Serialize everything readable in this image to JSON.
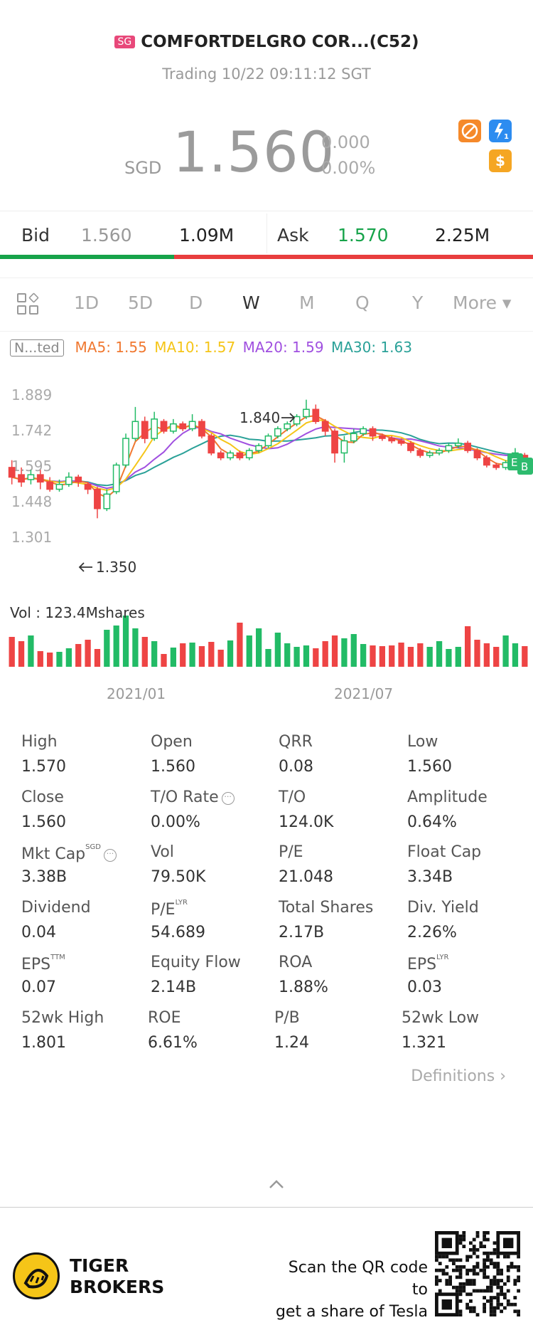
{
  "header": {
    "market_badge": "SG",
    "title": "COMFORTDELGRO COR...(C52)",
    "status": "Trading 10/22 09:11:12 SGT",
    "currency": "SGD",
    "price": "1.560",
    "change": "0.000",
    "change_pct": "0.00%"
  },
  "icons": {
    "no_fee_icon": "no-commission-icon",
    "margin_icon": "lightning-1-icon",
    "dollar_icon": "dollar-icon",
    "colors": {
      "orange": "#f5892a",
      "blue": "#2d8cf0",
      "gold": "#f5a623"
    }
  },
  "bid_ask": {
    "bid_label": "Bid",
    "bid_price": "1.560",
    "bid_size": "1.09M",
    "ask_label": "Ask",
    "ask_price": "1.570",
    "ask_size": "2.25M",
    "colors": {
      "green": "#16a34a",
      "red": "#e83e3e"
    }
  },
  "periods": {
    "items": [
      "1D",
      "5D",
      "D",
      "W",
      "M",
      "Q",
      "Y"
    ],
    "active": "W",
    "more": "More ▾"
  },
  "ma": {
    "badge": "N...ted",
    "ma5": "MA5: 1.55",
    "ma10": "MA10: 1.57",
    "ma20": "MA20: 1.59",
    "ma30": "MA30: 1.63",
    "colors": {
      "ma5": "#f07830",
      "ma10": "#f5c518",
      "ma20": "#a050e0",
      "ma30": "#2aa198"
    }
  },
  "chart_data": {
    "type": "candlestick",
    "y_ticks": [
      "1.889",
      "1.742",
      "1.595",
      "1.448",
      "1.301"
    ],
    "ylim": [
      1.301,
      1.889
    ],
    "x_ticks": [
      "2021/01",
      "2021/07"
    ],
    "high_annotation": "1.840",
    "low_annotation": "1.350",
    "volume_label": "Vol  : 123.4Mshares",
    "candles": [
      {
        "o": 1.56,
        "c": 1.52,
        "h": 1.59,
        "l": 1.49
      },
      {
        "o": 1.53,
        "c": 1.5,
        "h": 1.56,
        "l": 1.48
      },
      {
        "o": 1.51,
        "c": 1.53,
        "h": 1.55,
        "l": 1.49
      },
      {
        "o": 1.53,
        "c": 1.5,
        "h": 1.55,
        "l": 1.47
      },
      {
        "o": 1.5,
        "c": 1.47,
        "h": 1.52,
        "l": 1.46
      },
      {
        "o": 1.47,
        "c": 1.49,
        "h": 1.51,
        "l": 1.46
      },
      {
        "o": 1.49,
        "c": 1.52,
        "h": 1.54,
        "l": 1.48
      },
      {
        "o": 1.52,
        "c": 1.5,
        "h": 1.53,
        "l": 1.48
      },
      {
        "o": 1.49,
        "c": 1.47,
        "h": 1.5,
        "l": 1.45
      },
      {
        "o": 1.47,
        "c": 1.39,
        "h": 1.48,
        "l": 1.35
      },
      {
        "o": 1.39,
        "c": 1.45,
        "h": 1.47,
        "l": 1.38
      },
      {
        "o": 1.46,
        "c": 1.57,
        "h": 1.58,
        "l": 1.45
      },
      {
        "o": 1.57,
        "c": 1.68,
        "h": 1.7,
        "l": 1.56
      },
      {
        "o": 1.68,
        "c": 1.75,
        "h": 1.81,
        "l": 1.67
      },
      {
        "o": 1.75,
        "c": 1.68,
        "h": 1.77,
        "l": 1.66
      },
      {
        "o": 1.68,
        "c": 1.76,
        "h": 1.79,
        "l": 1.67
      },
      {
        "o": 1.75,
        "c": 1.71,
        "h": 1.76,
        "l": 1.7
      },
      {
        "o": 1.71,
        "c": 1.74,
        "h": 1.76,
        "l": 1.7
      },
      {
        "o": 1.74,
        "c": 1.72,
        "h": 1.75,
        "l": 1.71
      },
      {
        "o": 1.72,
        "c": 1.75,
        "h": 1.78,
        "l": 1.71
      },
      {
        "o": 1.75,
        "c": 1.69,
        "h": 1.76,
        "l": 1.68
      },
      {
        "o": 1.69,
        "c": 1.62,
        "h": 1.7,
        "l": 1.61
      },
      {
        "o": 1.62,
        "c": 1.6,
        "h": 1.63,
        "l": 1.59
      },
      {
        "o": 1.6,
        "c": 1.62,
        "h": 1.63,
        "l": 1.59
      },
      {
        "o": 1.62,
        "c": 1.6,
        "h": 1.63,
        "l": 1.59
      },
      {
        "o": 1.6,
        "c": 1.63,
        "h": 1.64,
        "l": 1.59
      },
      {
        "o": 1.63,
        "c": 1.65,
        "h": 1.66,
        "l": 1.62
      },
      {
        "o": 1.65,
        "c": 1.69,
        "h": 1.7,
        "l": 1.64
      },
      {
        "o": 1.69,
        "c": 1.72,
        "h": 1.73,
        "l": 1.68
      },
      {
        "o": 1.72,
        "c": 1.74,
        "h": 1.75,
        "l": 1.71
      },
      {
        "o": 1.74,
        "c": 1.77,
        "h": 1.78,
        "l": 1.73
      },
      {
        "o": 1.77,
        "c": 1.8,
        "h": 1.84,
        "l": 1.76
      },
      {
        "o": 1.8,
        "c": 1.75,
        "h": 1.82,
        "l": 1.74
      },
      {
        "o": 1.75,
        "c": 1.71,
        "h": 1.76,
        "l": 1.69
      },
      {
        "o": 1.71,
        "c": 1.62,
        "h": 1.72,
        "l": 1.58
      },
      {
        "o": 1.62,
        "c": 1.67,
        "h": 1.69,
        "l": 1.58
      },
      {
        "o": 1.67,
        "c": 1.7,
        "h": 1.72,
        "l": 1.66
      },
      {
        "o": 1.7,
        "c": 1.72,
        "h": 1.73,
        "l": 1.69
      },
      {
        "o": 1.72,
        "c": 1.69,
        "h": 1.73,
        "l": 1.67
      },
      {
        "o": 1.69,
        "c": 1.68,
        "h": 1.7,
        "l": 1.67
      },
      {
        "o": 1.68,
        "c": 1.67,
        "h": 1.69,
        "l": 1.66
      },
      {
        "o": 1.67,
        "c": 1.66,
        "h": 1.68,
        "l": 1.65
      },
      {
        "o": 1.66,
        "c": 1.63,
        "h": 1.67,
        "l": 1.62
      },
      {
        "o": 1.63,
        "c": 1.61,
        "h": 1.64,
        "l": 1.6
      },
      {
        "o": 1.61,
        "c": 1.62,
        "h": 1.63,
        "l": 1.6
      },
      {
        "o": 1.62,
        "c": 1.63,
        "h": 1.64,
        "l": 1.61
      },
      {
        "o": 1.63,
        "c": 1.65,
        "h": 1.66,
        "l": 1.62
      },
      {
        "o": 1.65,
        "c": 1.66,
        "h": 1.68,
        "l": 1.64
      },
      {
        "o": 1.66,
        "c": 1.63,
        "h": 1.67,
        "l": 1.62
      },
      {
        "o": 1.63,
        "c": 1.6,
        "h": 1.64,
        "l": 1.59
      },
      {
        "o": 1.6,
        "c": 1.57,
        "h": 1.61,
        "l": 1.56
      },
      {
        "o": 1.57,
        "c": 1.56,
        "h": 1.58,
        "l": 1.55
      },
      {
        "o": 1.56,
        "c": 1.58,
        "h": 1.59,
        "l": 1.55
      },
      {
        "o": 1.58,
        "c": 1.62,
        "h": 1.64,
        "l": 1.57
      },
      {
        "o": 1.61,
        "c": 1.56,
        "h": 1.62,
        "l": 1.55
      }
    ],
    "volumes": [
      4.2,
      3.6,
      4.4,
      2.2,
      2.0,
      2.1,
      2.6,
      3.2,
      3.8,
      2.5,
      5.2,
      5.8,
      7.2,
      5.4,
      4.2,
      3.6,
      1.8,
      2.7,
      3.3,
      3.4,
      2.9,
      3.5,
      2.4,
      3.7,
      6.2,
      4.4,
      5.4,
      2.5,
      4.8,
      3.3,
      2.8,
      3.0,
      2.6,
      3.6,
      4.4,
      4.0,
      4.6,
      3.2,
      3.0,
      2.9,
      3.0,
      3.4,
      2.8,
      3.3,
      2.8,
      3.6,
      2.5,
      2.8,
      5.7,
      3.8,
      3.3,
      2.8,
      4.4,
      3.3,
      2.9
    ]
  },
  "stats": [
    {
      "label": "High",
      "value": "1.570"
    },
    {
      "label": "Open",
      "value": "1.560"
    },
    {
      "label": "QRR",
      "value": "0.08"
    },
    {
      "label": "Low",
      "value": "1.560"
    },
    {
      "label": "Close",
      "value": "1.560"
    },
    {
      "label": "T/O Rate",
      "value": "0.00%"
    },
    {
      "label": "T/O",
      "value": "124.0K"
    },
    {
      "label": "Amplitude",
      "value": "0.64%"
    },
    {
      "label": "Mkt Cap",
      "value": "3.38B"
    },
    {
      "label": "Vol",
      "value": "79.50K"
    },
    {
      "label": "P/E",
      "value": "21.048"
    },
    {
      "label": "Float Cap",
      "value": "3.34B"
    },
    {
      "label": "Dividend",
      "value": "0.04"
    },
    {
      "label": "P/E",
      "value": "54.689"
    },
    {
      "label": "Total Shares",
      "value": "2.17B"
    },
    {
      "label": "Div. Yield",
      "value": "2.26%"
    },
    {
      "label": "EPS",
      "value": "0.07"
    },
    {
      "label": "Equity Flow",
      "value": "2.14B"
    },
    {
      "label": "ROA",
      "value": "1.88%"
    },
    {
      "label": "EPS",
      "value": "0.03"
    },
    {
      "label": "52wk High",
      "value": "1.801"
    },
    {
      "label": "ROE",
      "value": "6.61%"
    },
    {
      "label": "P/B",
      "value": "1.24"
    },
    {
      "label": "52wk Low",
      "value": "1.321"
    }
  ],
  "stat_sups": {
    "mkt_cap": "SGD",
    "pe_lyr": "LYR",
    "eps_ttm": "TTM",
    "eps_lyr": "LYR"
  },
  "footer": {
    "definitions": "Definitions",
    "brand_line1": "TIGER",
    "brand_line2": "BROKERS",
    "scan_line1": "Scan the QR code to",
    "scan_line2": "get a share of Tesla"
  }
}
